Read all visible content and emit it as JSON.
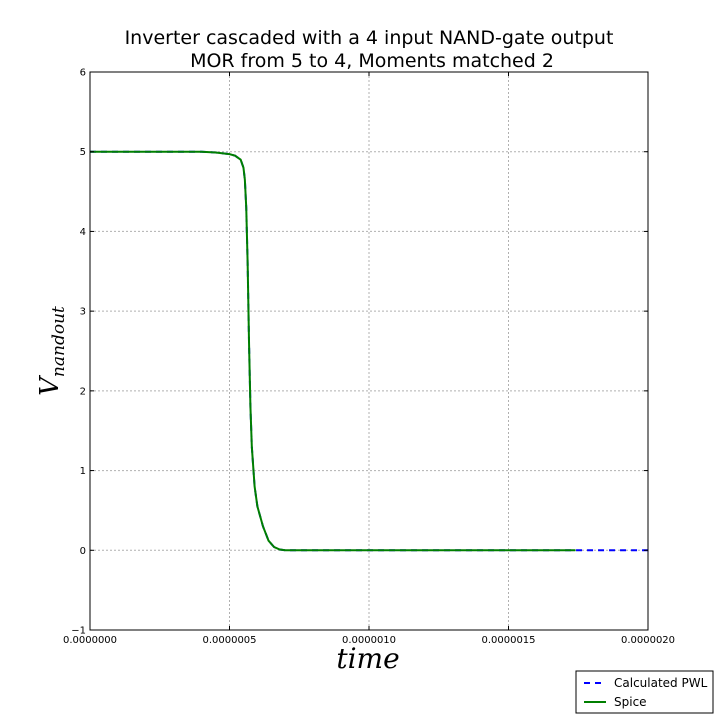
{
  "chart_data": {
    "type": "line",
    "title_line1": "Inverter cascaded with a 4 input NAND-gate     output",
    "title_line2": "MOR from 5 to 4, Moments matched 2",
    "xlabel": "time",
    "ylabel_main": "V",
    "ylabel_sub": "nandout",
    "xlim": [
      0,
      2e-06
    ],
    "ylim": [
      -1,
      6
    ],
    "x_ticks": [
      0,
      5e-07,
      1e-06,
      1.5e-06,
      2e-06
    ],
    "x_tick_labels": [
      "0.0000000",
      "0.0000005",
      "0.0000010",
      "0.0000015",
      "0.0000020"
    ],
    "y_ticks": [
      -1,
      0,
      1,
      2,
      3,
      4,
      5,
      6
    ],
    "y_tick_labels": [
      "−1",
      "0",
      "1",
      "2",
      "3",
      "4",
      "5",
      "6"
    ],
    "grid": true,
    "legend_placement": "below-right",
    "series": [
      {
        "name": "Calculated PWL",
        "color": "#0000ff",
        "style": "dashed",
        "x": [
          0,
          4e-07,
          4.5e-07,
          5e-07,
          5.2e-07,
          5.4e-07,
          5.5e-07,
          5.55e-07,
          5.6e-07,
          5.65e-07,
          5.7e-07,
          5.75e-07,
          5.8e-07,
          5.9e-07,
          6e-07,
          6.2e-07,
          6.4e-07,
          6.6e-07,
          6.8e-07,
          7e-07,
          7.5e-07,
          1e-06,
          1.5e-06,
          2e-06
        ],
        "y": [
          5,
          5,
          4.99,
          4.97,
          4.95,
          4.9,
          4.8,
          4.65,
          4.3,
          3.6,
          2.6,
          1.8,
          1.3,
          0.8,
          0.55,
          0.3,
          0.12,
          0.04,
          0.01,
          0,
          0,
          0,
          0,
          0
        ]
      },
      {
        "name": "Spice",
        "color": "#007f00",
        "style": "solid",
        "x": [
          0,
          4e-07,
          4.5e-07,
          5e-07,
          5.2e-07,
          5.4e-07,
          5.5e-07,
          5.55e-07,
          5.6e-07,
          5.65e-07,
          5.7e-07,
          5.75e-07,
          5.8e-07,
          5.9e-07,
          6e-07,
          6.2e-07,
          6.4e-07,
          6.6e-07,
          6.8e-07,
          7e-07,
          7.5e-07,
          1e-06,
          1.5e-06,
          1.74e-06
        ],
        "y": [
          5,
          5,
          4.99,
          4.97,
          4.95,
          4.9,
          4.8,
          4.65,
          4.3,
          3.6,
          2.6,
          1.8,
          1.3,
          0.8,
          0.55,
          0.3,
          0.12,
          0.04,
          0.01,
          0,
          0,
          0,
          0,
          0
        ]
      }
    ]
  }
}
